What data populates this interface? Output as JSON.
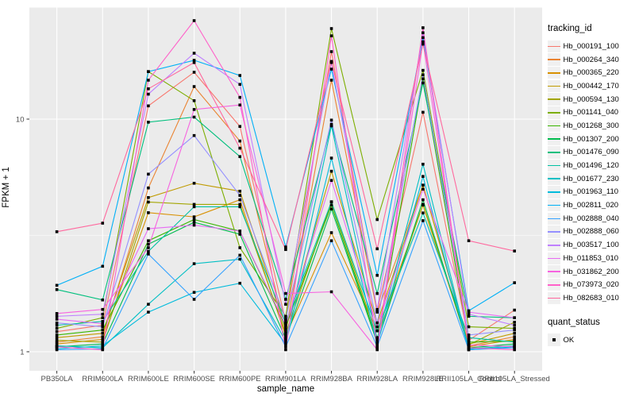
{
  "legend": {
    "tracking_title": "tracking_id",
    "quant_title": "quant_status",
    "quant_items": [
      {
        "label": "OK"
      }
    ],
    "key_background": "#F0F0F0",
    "point_color": "#000000"
  },
  "chart_data": {
    "type": "line",
    "title": "",
    "xlabel": "sample_name",
    "ylabel": "FPKM + 1",
    "scale": "log10",
    "ylim": [
      1,
      30
    ],
    "yticks": [
      {
        "value": 1,
        "label": "1"
      },
      {
        "value": 10,
        "label": "10"
      }
    ],
    "minor_gridlines": [
      3.162
    ],
    "grid": "on",
    "legend_position": "right",
    "panel_background": "#EBEBEB",
    "gridline_color": "#FFFFFF",
    "tick_color": "#333333",
    "tick_label_color": "#4D4D4D",
    "point_color": "#000000",
    "point_shape": "square",
    "categories": [
      "PB350LA",
      "RRIM600LA",
      "RRIM600LE",
      "RRIM600SE",
      "RRIM600PE",
      "RRIM901LA",
      "RRIM928BA",
      "RRIM928LA",
      "RRIM928LE",
      "RRII105LA_Control",
      "RRII105LA_Stressed"
    ],
    "series": [
      {
        "name": "Hb_000191_100",
        "color": "#F8766D",
        "values": [
          1.22,
          1.3,
          11.4,
          15.9,
          9.3,
          1.35,
          19.5,
          1.5,
          10.7,
          1.12,
          1.51
        ]
      },
      {
        "name": "Hb_000264_340",
        "color": "#EA8331",
        "values": [
          1.1,
          1.16,
          5.06,
          13.8,
          8.05,
          1.22,
          14.7,
          1.48,
          5.2,
          1.06,
          1.16
        ]
      },
      {
        "name": "Hb_000365_220",
        "color": "#D89000",
        "values": [
          1.08,
          1.13,
          3.96,
          3.8,
          4.5,
          1.17,
          3.25,
          1.23,
          4.27,
          1.05,
          1.13
        ]
      },
      {
        "name": "Hb_000442_170",
        "color": "#C09B00",
        "values": [
          1.15,
          1.2,
          4.6,
          5.3,
          4.9,
          1.25,
          5.97,
          1.33,
          5.2,
          1.08,
          1.2
        ]
      },
      {
        "name": "Hb_000594_130",
        "color": "#A3A500",
        "values": [
          1.12,
          1.1,
          4.4,
          4.3,
          4.3,
          1.2,
          4.41,
          1.15,
          4.3,
          1.07,
          1.34
        ]
      },
      {
        "name": "Hb_001141_040",
        "color": "#7CAE00",
        "values": [
          1.26,
          1.4,
          16.0,
          12.0,
          2.8,
          1.42,
          24.5,
          3.7,
          16.2,
          1.28,
          1.26
        ]
      },
      {
        "name": "Hb_001268_300",
        "color": "#39B600",
        "values": [
          1.18,
          1.24,
          3.0,
          3.7,
          3.3,
          1.28,
          4.27,
          1.11,
          14.9,
          1.1,
          1.11
        ]
      },
      {
        "name": "Hb_001307_200",
        "color": "#00BB4E",
        "values": [
          1.05,
          1.08,
          2.9,
          3.6,
          3.2,
          1.14,
          4.11,
          1.09,
          4.5,
          1.04,
          1.08
        ]
      },
      {
        "name": "Hb_001476_090",
        "color": "#00BF7D",
        "values": [
          1.85,
          1.67,
          9.7,
          10.2,
          6.9,
          1.68,
          9.5,
          1.78,
          14.3,
          1.42,
          1.4
        ]
      },
      {
        "name": "Hb_001496_120",
        "color": "#00C1A3",
        "values": [
          1.3,
          1.35,
          2.7,
          4.2,
          4.2,
          1.33,
          4.41,
          1.23,
          3.95,
          1.15,
          1.1
        ]
      },
      {
        "name": "Hb_001677_230",
        "color": "#00BFC4",
        "values": [
          1.06,
          1.04,
          1.6,
          2.39,
          2.5,
          1.11,
          9.35,
          1.13,
          6.4,
          1.03,
          1.06
        ]
      },
      {
        "name": "Hb_001963_110",
        "color": "#00BBDC",
        "values": [
          1.03,
          1.06,
          1.48,
          1.8,
          1.97,
          1.08,
          6.8,
          1.07,
          5.67,
          1.02,
          1.05
        ]
      },
      {
        "name": "Hb_002811_020",
        "color": "#00B0F6",
        "values": [
          1.93,
          2.33,
          16.0,
          17.9,
          15.4,
          2.82,
          16.4,
          2.13,
          22.4,
          1.5,
          1.98
        ]
      },
      {
        "name": "Hb_002888_040",
        "color": "#35A2FF",
        "values": [
          1.02,
          1.03,
          2.63,
          1.68,
          2.6,
          1.05,
          3.0,
          1.05,
          3.66,
          1.02,
          1.04
        ]
      },
      {
        "name": "Hb_002888_060",
        "color": "#9590FF",
        "values": [
          1.33,
          1.28,
          5.8,
          8.5,
          4.7,
          1.38,
          9.9,
          1.33,
          15.5,
          1.18,
          1.24
        ]
      },
      {
        "name": "Hb_003517_100",
        "color": "#BF80FF",
        "values": [
          1.42,
          1.45,
          12.8,
          19.2,
          14.1,
          1.6,
          17.5,
          1.52,
          23.5,
          1.45,
          1.3
        ]
      },
      {
        "name": "Hb_011853_010",
        "color": "#E76BF3",
        "values": [
          1.38,
          1.32,
          3.38,
          3.5,
          3.3,
          1.3,
          5.45,
          1.28,
          5.0,
          1.48,
          1.4
        ]
      },
      {
        "name": "Hb_031862_200",
        "color": "#F763E0",
        "values": [
          1.46,
          1.52,
          2.8,
          11.0,
          11.5,
          1.78,
          1.81,
          1.02,
          21.5,
          1.07,
          1.05
        ]
      },
      {
        "name": "Hb_073973_020",
        "color": "#FF61C9",
        "values": [
          1.05,
          1.02,
          14.7,
          26.5,
          12.4,
          1.02,
          22.8,
          1.04,
          24.7,
          1.04,
          1.02
        ]
      },
      {
        "name": "Hb_082683_010",
        "color": "#FF689E",
        "values": [
          3.28,
          3.57,
          13.5,
          17.5,
          7.5,
          2.75,
          17.7,
          2.77,
          21.0,
          3.0,
          2.71
        ]
      }
    ]
  }
}
